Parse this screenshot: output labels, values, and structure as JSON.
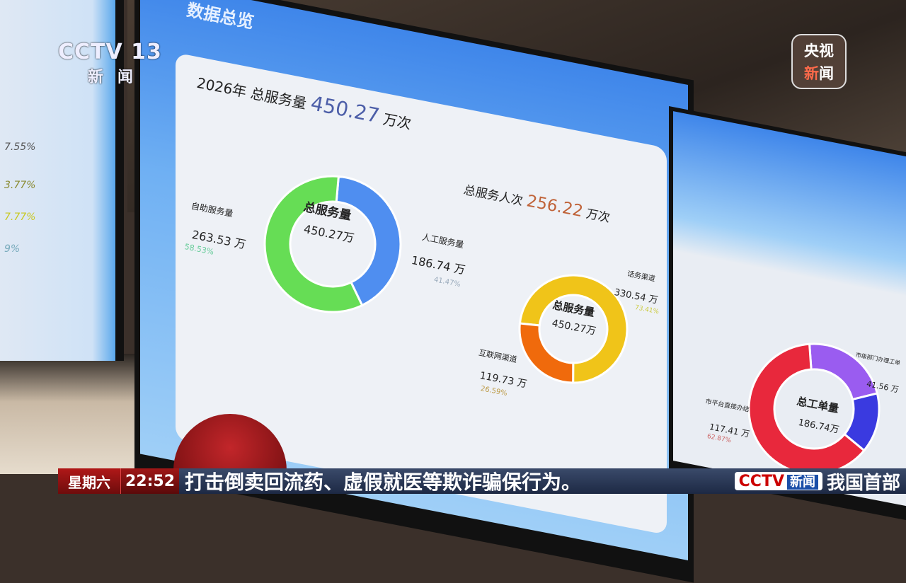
{
  "overlay": {
    "channel_logo": "CCTV 13",
    "channel_sub": "新闻",
    "corner_badge_top": "央视",
    "corner_badge_bottom_a": "新",
    "corner_badge_bottom_b": "闻"
  },
  "left_screen": {
    "percents": [
      "7.55%",
      "3.77%",
      "7.77%",
      "9%"
    ]
  },
  "dashboard": {
    "section_title": "数据总览",
    "year_label": "2026年 总服务量",
    "year_total": "450.27",
    "year_unit": "万次",
    "people_label": "总服务人次",
    "people_total": "256.22",
    "people_unit": "万次"
  },
  "chart_data": [
    {
      "type": "pie",
      "donut": true,
      "center_label": "总服务量",
      "center_value": "450.27万",
      "slices": [
        {
          "label": "人工服务量",
          "value": 186.74,
          "value_text": "186.74 万",
          "percent": "41.47%",
          "color": "#4f8ef0"
        },
        {
          "label": "自助服务量",
          "value": 263.53,
          "value_text": "263.53 万",
          "percent": "58.53%",
          "color": "#66dd55"
        }
      ]
    },
    {
      "type": "pie",
      "donut": true,
      "center_label": "总服务量",
      "center_value": "450.27万",
      "slices": [
        {
          "label": "话务渠道",
          "value": 330.54,
          "value_text": "330.54 万",
          "percent": "73.41%",
          "color": "#f0c419"
        },
        {
          "label": "互联网渠道",
          "value": 119.73,
          "value_text": "119.73 万",
          "percent": "26.59%",
          "color": "#f06a0c"
        }
      ]
    },
    {
      "type": "pie",
      "donut": true,
      "center_label": "总工单量",
      "center_value": "186.74万",
      "slices": [
        {
          "label": "市级部门办理工单",
          "value": 41.56,
          "value_text": "41.56 万",
          "percent": "",
          "color": "#9a5cf0"
        },
        {
          "label": "",
          "value": 27.77,
          "value_text": "",
          "percent": "",
          "color": "#3a3ae0"
        },
        {
          "label": "市平台直接办结",
          "value": 117.41,
          "value_text": "117.41 万",
          "percent": "62.87%",
          "color": "#e8283c"
        }
      ]
    }
  ],
  "ticker": {
    "day": "星期六",
    "time": "22:52",
    "headline": "打击倒卖回流药、虚假就医等欺诈骗保行为。",
    "bug_left": "CCTV",
    "bug_right": "新闻",
    "next": "我国首部"
  }
}
